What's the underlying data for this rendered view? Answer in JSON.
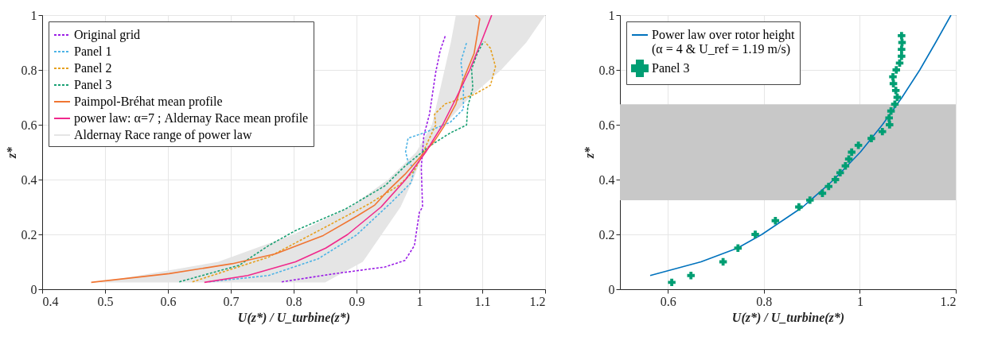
{
  "chart_data": [
    {
      "type": "line",
      "xlabel": "U(z*) / U_turbine(z*)",
      "ylabel": "z*",
      "xlim": [
        0.4,
        1.2
      ],
      "ylim": [
        0,
        1
      ],
      "xticks": [
        0.4,
        0.5,
        0.6,
        0.7,
        0.8,
        0.9,
        1,
        1.1,
        1.2
      ],
      "yticks": [
        0,
        0.2,
        0.4,
        0.6,
        0.8,
        1
      ],
      "grid": true,
      "legend": "top left",
      "series": [
        {
          "name": "Original grid",
          "type": "line",
          "line_style": "dashed",
          "color": "#9b1ee6",
          "x": [
            0.781,
            0.866,
            0.945,
            0.977,
            0.992,
            1.0,
            1.005,
            1.003,
            1.007,
            1.016,
            1.026,
            1.033,
            1.041
          ],
          "values": [
            0.027,
            0.057,
            0.081,
            0.105,
            0.159,
            0.281,
            0.3,
            0.444,
            0.56,
            0.638,
            0.792,
            0.87,
            0.923
          ]
        },
        {
          "name": "Panel 1",
          "type": "line",
          "line_style": "dashed",
          "color": "#4db3e6",
          "x": [
            0.665,
            0.76,
            0.839,
            0.9,
            0.955,
            0.987,
            0.992,
            0.982,
            0.978,
            0.982,
            1.007,
            1.049,
            1.07,
            1.07,
            1.066,
            1.075
          ],
          "values": [
            0.027,
            0.05,
            0.111,
            0.198,
            0.316,
            0.389,
            0.44,
            0.464,
            0.502,
            0.551,
            0.57,
            0.609,
            0.657,
            0.754,
            0.831,
            0.899
          ]
        },
        {
          "name": "Panel 2",
          "type": "line",
          "line_style": "dashed",
          "color": "#e6a01e",
          "x": [
            0.639,
            0.76,
            0.845,
            0.919,
            0.966,
            0.992,
            0.999,
            1.016,
            1.026,
            1.024,
            1.041,
            1.087,
            1.113,
            1.121,
            1.113,
            1.104
          ],
          "values": [
            0.027,
            0.117,
            0.22,
            0.31,
            0.377,
            0.432,
            0.464,
            0.551,
            0.599,
            0.638,
            0.676,
            0.71,
            0.744,
            0.812,
            0.879,
            0.903
          ]
        },
        {
          "name": "Panel 3",
          "type": "line",
          "line_style": "dashed",
          "color": "#19a073",
          "x": [
            0.618,
            0.713,
            0.76,
            0.803,
            0.882,
            0.945,
            0.977,
            1.016,
            1.049,
            1.075,
            1.077,
            1.085,
            1.083,
            1.092,
            1.102
          ],
          "values": [
            0.027,
            0.087,
            0.159,
            0.214,
            0.292,
            0.377,
            0.449,
            0.522,
            0.57,
            0.599,
            0.667,
            0.734,
            0.802,
            0.86,
            0.903
          ]
        },
        {
          "name": "Paimpol-Bréhat mean profile",
          "type": "line",
          "line_style": "solid",
          "color": "#f07532",
          "x": [
            0.478,
            0.602,
            0.702,
            0.771,
            0.847,
            0.9,
            0.929,
            0.95,
            0.977,
            1.024,
            1.039,
            1.058,
            1.068,
            1.087,
            1.092,
            1.096,
            1.089
          ],
          "values": [
            0.025,
            0.057,
            0.093,
            0.129,
            0.196,
            0.266,
            0.307,
            0.36,
            0.419,
            0.541,
            0.594,
            0.676,
            0.754,
            0.86,
            0.928,
            0.986,
            1.0
          ]
        },
        {
          "name": "power law: α=7 ; Aldernay Race mean profile",
          "type": "line",
          "line_style": "solid",
          "color": "#f0288c",
          "x": [
            0.658,
            0.727,
            0.803,
            0.851,
            0.886,
            0.939,
            0.978,
            1.01,
            1.037,
            1.059,
            1.08,
            1.098,
            1.115
          ],
          "values": [
            0.025,
            0.05,
            0.1,
            0.15,
            0.2,
            0.3,
            0.4,
            0.5,
            0.6,
            0.7,
            0.8,
            0.9,
            1.0
          ]
        },
        {
          "name": "Aldernay Race range of power law",
          "type": "area",
          "color": "#e5e5e5",
          "x": [
            0.49,
            0.68,
            0.8,
            0.89,
            0.95,
            0.995,
            1.02,
            1.03,
            1.04,
            1.05,
            1.058,
            1.2,
            1.17,
            1.13,
            1.08,
            1.04,
            1.007,
            0.99,
            0.97,
            0.94,
            0.91,
            0.85
          ],
          "values": [
            0.025,
            0.1,
            0.2,
            0.3,
            0.4,
            0.5,
            0.6,
            0.7,
            0.8,
            0.9,
            1.0,
            1.0,
            0.9,
            0.8,
            0.7,
            0.6,
            0.5,
            0.4,
            0.3,
            0.2,
            0.1,
            0.025
          ]
        }
      ]
    },
    {
      "type": "line",
      "xlabel": "U(z*) / U_turbine(z*)",
      "ylabel": "z*",
      "xlim": [
        0.5,
        1.2
      ],
      "ylim": [
        0,
        1
      ],
      "xticks": [
        0.6,
        0.8,
        1,
        1.2
      ],
      "yticks": [
        0,
        0.2,
        0.4,
        0.6,
        0.8,
        1
      ],
      "grid": true,
      "legend": "top left",
      "bands": [
        {
          "axis": "y",
          "from": 0.325,
          "to": 0.675,
          "color": "#c8c8c8"
        }
      ],
      "series": [
        {
          "name": "Power law over rotor height (α = 4 & U_ref = 1.19 m/s)",
          "type": "line",
          "line_style": "solid",
          "color": "#0072bd",
          "x": [
            0.563,
            0.669,
            0.745,
            0.796,
            0.881,
            0.946,
            1.001,
            1.047,
            1.088,
            1.125,
            1.158,
            1.19
          ],
          "values": [
            0.05,
            0.1,
            0.15,
            0.2,
            0.3,
            0.4,
            0.5,
            0.6,
            0.7,
            0.8,
            0.9,
            1.0
          ]
        },
        {
          "name": "Panel 3",
          "type": "scatter",
          "marker": "cross",
          "color": "#009e73",
          "x": [
            0.608,
            0.648,
            0.715,
            0.746,
            0.782,
            0.824,
            0.873,
            0.896,
            0.922,
            0.935,
            0.949,
            0.959,
            0.97,
            0.977,
            0.983,
            0.997,
            1.024,
            1.047,
            1.062,
            1.061,
            1.065,
            1.073,
            1.078,
            1.075,
            1.07,
            1.069,
            1.076,
            1.083,
            1.087,
            1.087,
            1.088,
            1.087
          ],
          "values": [
            0.025,
            0.05,
            0.1,
            0.15,
            0.2,
            0.25,
            0.3,
            0.325,
            0.35,
            0.375,
            0.4,
            0.425,
            0.45,
            0.475,
            0.5,
            0.525,
            0.55,
            0.575,
            0.6,
            0.625,
            0.65,
            0.675,
            0.7,
            0.725,
            0.75,
            0.775,
            0.8,
            0.825,
            0.85,
            0.875,
            0.9,
            0.925
          ]
        }
      ]
    }
  ]
}
